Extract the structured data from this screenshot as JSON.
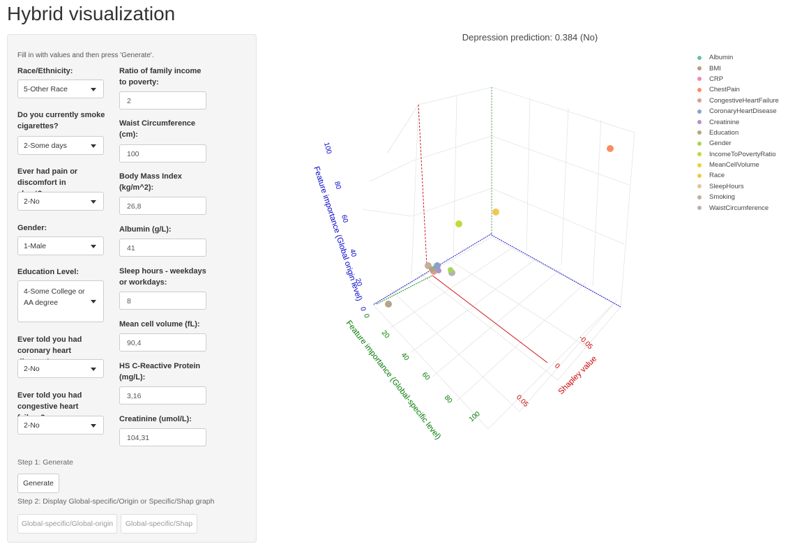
{
  "page_title": "Hybrid visualization",
  "instructions": "Fill in with values and then press 'Generate'.",
  "left_fields": [
    {
      "label": "Race/Ethnicity:",
      "value": "5-Other Race"
    },
    {
      "label": "Do you currently smoke cigarettes?",
      "value": "2-Some days"
    },
    {
      "label": "Ever had pain or discomfort in chest?",
      "value": "2-No"
    },
    {
      "label": "Gender:",
      "value": "1-Male"
    },
    {
      "label": "Education Level:",
      "value": "4-Some College or AA degree"
    },
    {
      "label": "Ever told you had coronary heart disease?",
      "value": "2-No"
    },
    {
      "label": "Ever told you had congestive heart failure?",
      "value": "2-No"
    }
  ],
  "right_fields": [
    {
      "label": "Ratio of family income to poverty:",
      "value": "2"
    },
    {
      "label": "Waist Circumference (cm):",
      "value": "100"
    },
    {
      "label": "Body Mass Index (kg/m^2):",
      "value": "26,8"
    },
    {
      "label": "Albumin (g/L):",
      "value": "41"
    },
    {
      "label": "Sleep hours - weekdays or workdays:",
      "value": "8"
    },
    {
      "label": "Mean cell volume (fL):",
      "value": "90,4"
    },
    {
      "label": "HS C-Reactive Protein (mg/L):",
      "value": "3,16"
    },
    {
      "label": "Creatinine (umol/L):",
      "value": "104,31"
    }
  ],
  "step1_label": "Step 1: Generate",
  "generate_button": "Generate",
  "step2_label": "Step 2: Display Global-specific/Origin or Specific/Shap graph",
  "btn_global_origin": "Global-specific/Global-origin",
  "btn_global_shap": "Global-specific/Shap",
  "chart_data": {
    "type": "scatter",
    "title": "Depression prediction: 0.384 (No)",
    "axes": {
      "x": {
        "label": "Shapley value",
        "ticks": [
          "-0.05",
          "0",
          "0.05"
        ],
        "color": "#cc0000"
      },
      "y": {
        "label": "Feature importance (Global-specific level)",
        "ticks": [
          "0",
          "20",
          "40",
          "60",
          "80",
          "100"
        ],
        "color": "#007700"
      },
      "z": {
        "label": "Feature importance (Global origin level)",
        "ticks": [
          "0",
          "20",
          "40",
          "60",
          "80",
          "100"
        ],
        "color": "#0000cc"
      }
    },
    "legend_position": "right",
    "series": [
      {
        "name": "Albumin",
        "color": "#66c2a5"
      },
      {
        "name": "BMI",
        "color": "#b79f7f"
      },
      {
        "name": "CRP",
        "color": "#e98bb7"
      },
      {
        "name": "ChestPain",
        "color": "#fc8d62"
      },
      {
        "name": "CongestiveHeartFailure",
        "color": "#d89c96"
      },
      {
        "name": "CoronaryHeartDisease",
        "color": "#8da0cb"
      },
      {
        "name": "Creatinine",
        "color": "#b591c6"
      },
      {
        "name": "Education",
        "color": "#b4a688"
      },
      {
        "name": "Gender",
        "color": "#a6d854"
      },
      {
        "name": "IncomeToPovertyRatio",
        "color": "#c4d93a"
      },
      {
        "name": "MeanCellVolume",
        "color": "#e8d42e"
      },
      {
        "name": "Race",
        "color": "#f0c850"
      },
      {
        "name": "SleepHours",
        "color": "#e0c4a0"
      },
      {
        "name": "Smoking",
        "color": "#c2b09c"
      },
      {
        "name": "WaistCircumference",
        "color": "#b3b3b3"
      }
    ]
  }
}
